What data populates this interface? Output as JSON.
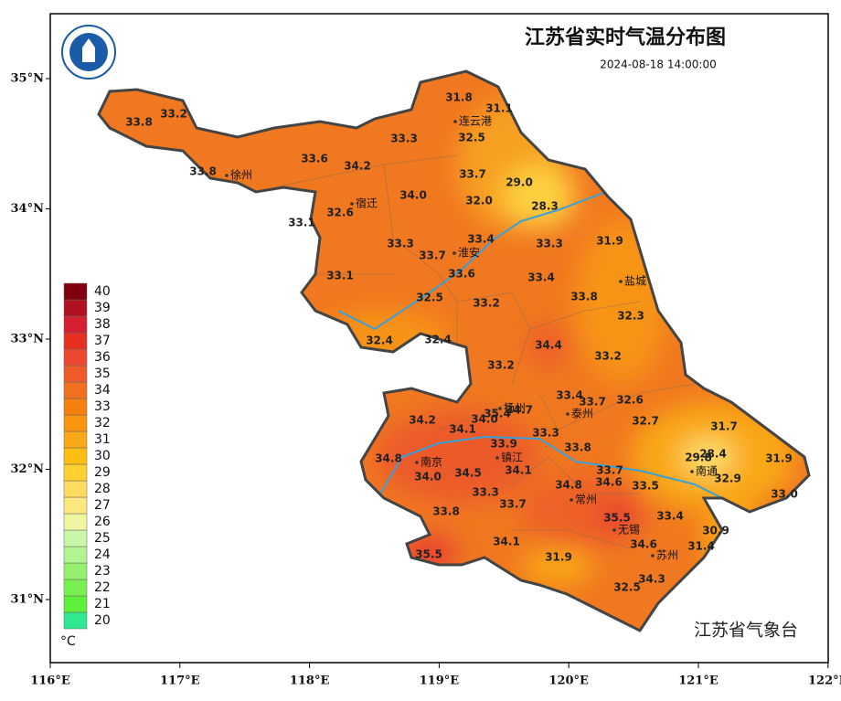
{
  "header": {
    "title": "江苏省实时气温分布图",
    "timestamp": "2024-08-18 14:00:00"
  },
  "agency": "江苏省气象台",
  "axes": {
    "lat_ticks": [
      {
        "value": 35,
        "label": "35°N"
      },
      {
        "value": 34,
        "label": "34°N"
      },
      {
        "value": 33,
        "label": "33°N"
      },
      {
        "value": 32,
        "label": "32°N"
      },
      {
        "value": 31,
        "label": "31°N"
      }
    ],
    "lon_ticks": [
      {
        "value": 116,
        "label": "116°E"
      },
      {
        "value": 117,
        "label": "117°E"
      },
      {
        "value": 118,
        "label": "118°E"
      },
      {
        "value": 119,
        "label": "119°E"
      },
      {
        "value": 120,
        "label": "120°E"
      },
      {
        "value": 121,
        "label": "121°E"
      },
      {
        "value": 122,
        "label": "122°E"
      }
    ]
  },
  "legend": {
    "unit": "°C",
    "levels": [
      20,
      21,
      22,
      23,
      24,
      25,
      26,
      27,
      28,
      29,
      30,
      31,
      32,
      33,
      34,
      35,
      36,
      37,
      38,
      39,
      40
    ],
    "colors": [
      "#2fe890",
      "#5cf03a",
      "#7af050",
      "#96f070",
      "#b0f590",
      "#c8f7a8",
      "#f0f5a0",
      "#fde880",
      "#fedc60",
      "#fed030",
      "#fdbe10",
      "#f9a818",
      "#f79410",
      "#f58010",
      "#f07020",
      "#ee5a2a",
      "#ec4830",
      "#e83020",
      "#d42030",
      "#b01020",
      "#800010"
    ]
  },
  "cities": [
    "连云港",
    "徐州",
    "宿迁",
    "淮安",
    "盐城",
    "扬州",
    "泰州",
    "南京",
    "镇江",
    "常州",
    "无锡",
    "南通",
    "苏州"
  ],
  "readings": [
    "33.8",
    "33.2",
    "33.8",
    "33.6",
    "34.2",
    "33.3",
    "31.8",
    "31.1",
    "32.5",
    "33.7",
    "29.0",
    "34.0",
    "32.0",
    "28.3",
    "32.6",
    "33.1",
    "33.3",
    "33.7",
    "33.4",
    "33.3",
    "31.9",
    "33.6",
    "33.1",
    "33.4",
    "32.5",
    "33.2",
    "33.8",
    "32.3",
    "32.4",
    "32.4",
    "34.4",
    "33.2",
    "33.2",
    "33.4",
    "33.7",
    "32.6",
    "35.4",
    "34.7",
    "34.2",
    "34.0",
    "34.1",
    "33.3",
    "32.7",
    "31.7",
    "33.9",
    "33.8",
    "29.8",
    "28.4",
    "31.9",
    "34.8",
    "34.0",
    "34.5",
    "34.1",
    "33.7",
    "34.6",
    "34.8",
    "33.5",
    "32.9",
    "33.0",
    "33.3",
    "33.7",
    "33.8",
    "35.5",
    "33.4",
    "30.9",
    "34.1",
    "34.6",
    "31.4",
    "35.5",
    "31.9",
    "34.3",
    "32.5"
  ]
}
